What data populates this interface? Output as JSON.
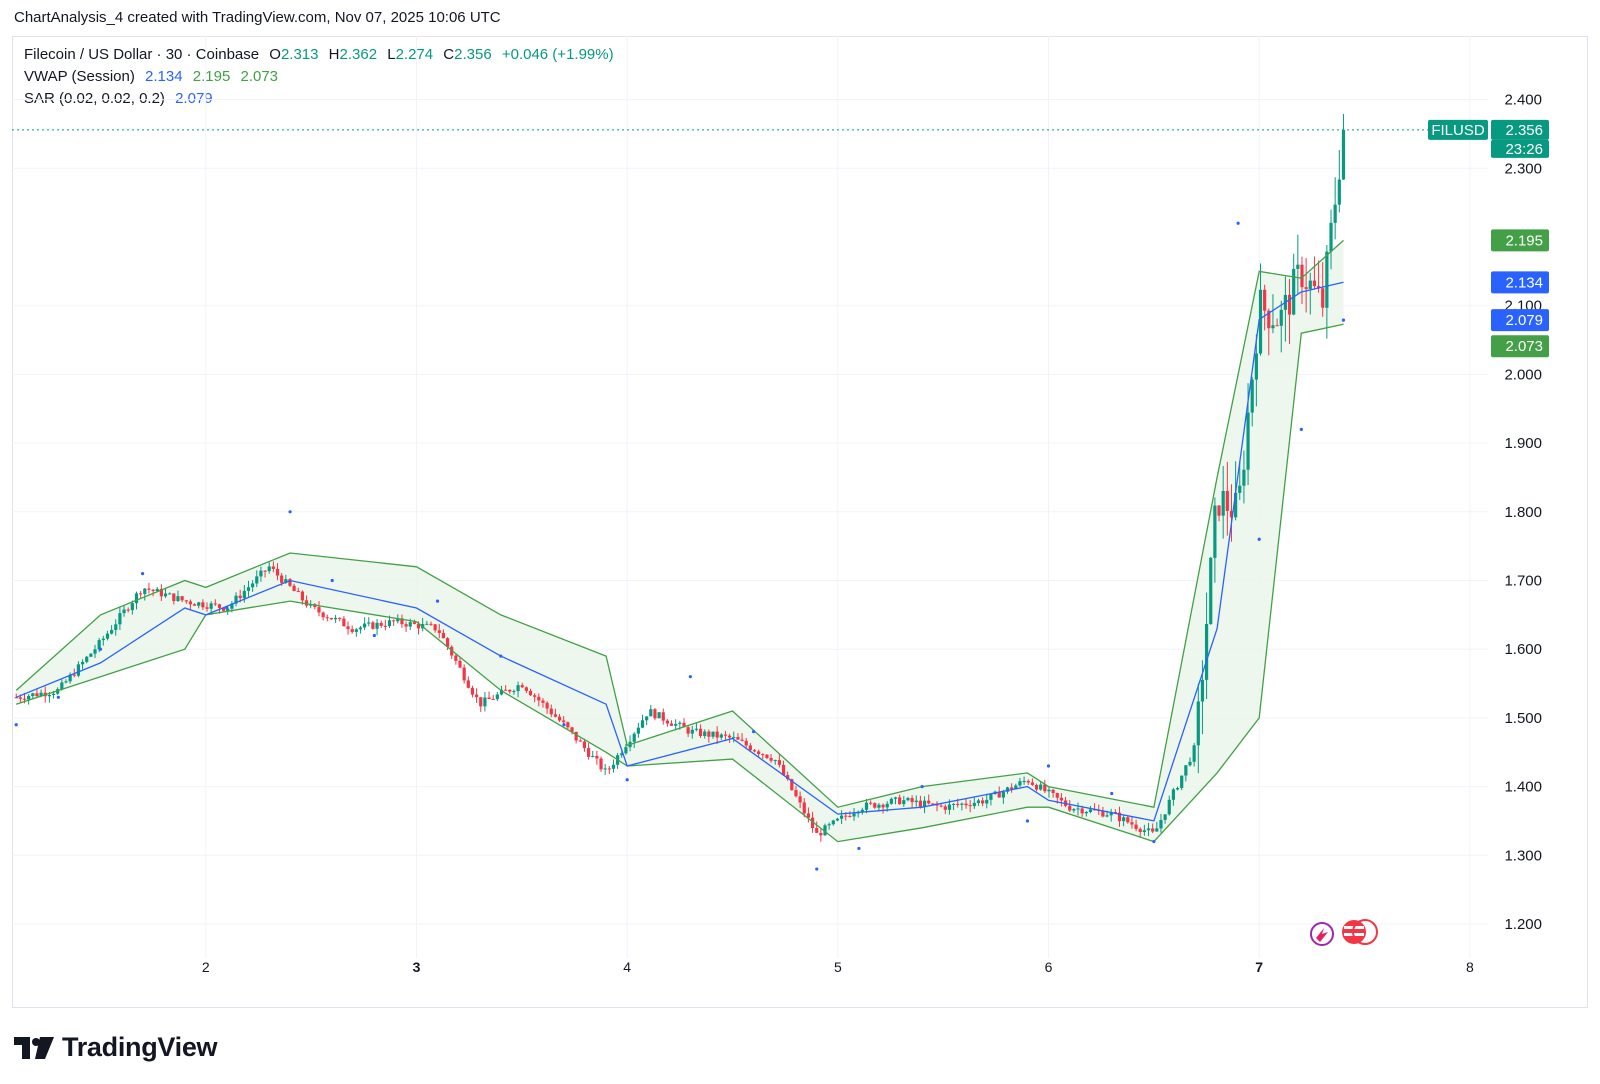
{
  "header": {
    "caption": "ChartAnalysis_4 created with TradingView.com, Nov 07, 2025 10:06 UTC"
  },
  "legend": {
    "symbol": "Filecoin / US Dollar · 30 · Coinbase",
    "o_label": "O",
    "o_value": "2.313",
    "h_label": "H",
    "h_value": "2.362",
    "l_label": "L",
    "l_value": "2.274",
    "c_label": "C",
    "c_value": "2.356",
    "change": "+0.046 (+1.99%)",
    "vwap_label": "VWAP (Session)",
    "vwap_values": [
      "2.134",
      "2.195",
      "2.073"
    ],
    "sar_label": "SAR (0.02, 0.02, 0.2)",
    "sar_value": "2.079"
  },
  "price_tags": {
    "symbol_tag": "FILUSD",
    "last_price": "2.356",
    "countdown": "23:26",
    "vwap_upper": "2.195",
    "vwap": "2.134",
    "sar": "2.079",
    "vwap_lower": "2.073"
  },
  "brand": {
    "name": "TradingView"
  },
  "colors": {
    "up": "#089981",
    "down": "#f23645",
    "vwap": "#2962ff",
    "band": "#43a047",
    "band_fill": "#e8f5e9",
    "sar": "#2962ff",
    "grid": "#f0f3fa"
  },
  "chart_data": {
    "type": "candlestick",
    "yticks": [
      "1.200",
      "1.300",
      "1.400",
      "1.500",
      "1.600",
      "1.700",
      "1.800",
      "1.900",
      "2.000",
      "2.100",
      "2.300",
      "2.400"
    ],
    "xticks": [
      "2",
      "3",
      "4",
      "5",
      "6",
      "7",
      "8"
    ],
    "ylim": [
      1.12,
      2.51
    ],
    "xlim": [
      1.08,
      8.2
    ],
    "last_price": 2.356,
    "series": [
      {
        "name": "Filecoin / US Dollar",
        "type": "candlestick",
        "x": [
          1.1,
          1.3,
          1.5,
          1.7,
          1.9,
          2.1,
          2.3,
          2.5,
          2.7,
          2.9,
          3.1,
          3.3,
          3.5,
          3.7,
          3.9,
          4.1,
          4.3,
          4.5,
          4.7,
          4.9,
          5.1,
          5.3,
          5.5,
          5.7,
          5.9,
          6.1,
          6.3,
          6.5,
          6.7,
          6.8,
          6.9,
          7.0,
          7.1,
          7.2,
          7.3,
          7.4
        ],
        "close": [
          1.53,
          1.54,
          1.61,
          1.69,
          1.67,
          1.66,
          1.72,
          1.66,
          1.63,
          1.64,
          1.63,
          1.52,
          1.55,
          1.49,
          1.42,
          1.51,
          1.48,
          1.47,
          1.44,
          1.33,
          1.37,
          1.38,
          1.37,
          1.38,
          1.41,
          1.37,
          1.36,
          1.33,
          1.46,
          1.82,
          1.8,
          2.1,
          2.08,
          2.15,
          2.1,
          2.356
        ]
      },
      {
        "name": "VWAP (Session)",
        "type": "line",
        "x": [
          1.1,
          1.5,
          1.9,
          2.0,
          2.4,
          3.0,
          3.4,
          3.9,
          4.0,
          4.5,
          5.0,
          5.4,
          5.9,
          6.0,
          6.5,
          6.8,
          7.0,
          7.2,
          7.4
        ],
        "y": [
          1.53,
          1.58,
          1.66,
          1.65,
          1.7,
          1.66,
          1.59,
          1.52,
          1.43,
          1.47,
          1.36,
          1.37,
          1.4,
          1.38,
          1.35,
          1.63,
          2.08,
          2.12,
          2.134
        ]
      },
      {
        "name": "VWAP upper band",
        "type": "line",
        "x": [
          1.1,
          1.5,
          1.9,
          2.0,
          2.4,
          3.0,
          3.4,
          3.9,
          4.0,
          4.5,
          5.0,
          5.4,
          5.9,
          6.0,
          6.5,
          6.8,
          7.0,
          7.2,
          7.4
        ],
        "y": [
          1.54,
          1.65,
          1.7,
          1.69,
          1.74,
          1.72,
          1.65,
          1.59,
          1.46,
          1.51,
          1.37,
          1.4,
          1.42,
          1.4,
          1.37,
          1.85,
          2.15,
          2.14,
          2.195
        ]
      },
      {
        "name": "VWAP lower band",
        "type": "line",
        "x": [
          1.1,
          1.5,
          1.9,
          2.0,
          2.4,
          3.0,
          3.4,
          3.9,
          4.0,
          4.5,
          5.0,
          5.4,
          5.9,
          6.0,
          6.5,
          6.8,
          7.0,
          7.2,
          7.4
        ],
        "y": [
          1.52,
          1.56,
          1.6,
          1.65,
          1.67,
          1.64,
          1.54,
          1.45,
          1.43,
          1.44,
          1.32,
          1.34,
          1.37,
          1.37,
          1.32,
          1.42,
          1.5,
          2.06,
          2.073
        ]
      },
      {
        "name": "SAR (0.02, 0.02, 0.2)",
        "type": "scatter",
        "x": [
          1.1,
          1.3,
          1.5,
          1.7,
          2.1,
          2.4,
          2.6,
          2.8,
          3.1,
          3.4,
          3.7,
          4.0,
          4.3,
          4.6,
          4.9,
          5.1,
          5.4,
          5.9,
          6.0,
          6.3,
          6.5,
          6.9,
          7.0,
          7.2,
          7.4
        ],
        "y": [
          1.49,
          1.53,
          1.6,
          1.71,
          1.66,
          1.8,
          1.7,
          1.62,
          1.67,
          1.59,
          1.49,
          1.41,
          1.56,
          1.48,
          1.28,
          1.31,
          1.4,
          1.35,
          1.43,
          1.39,
          1.32,
          2.22,
          1.76,
          1.92,
          2.079
        ]
      }
    ]
  }
}
